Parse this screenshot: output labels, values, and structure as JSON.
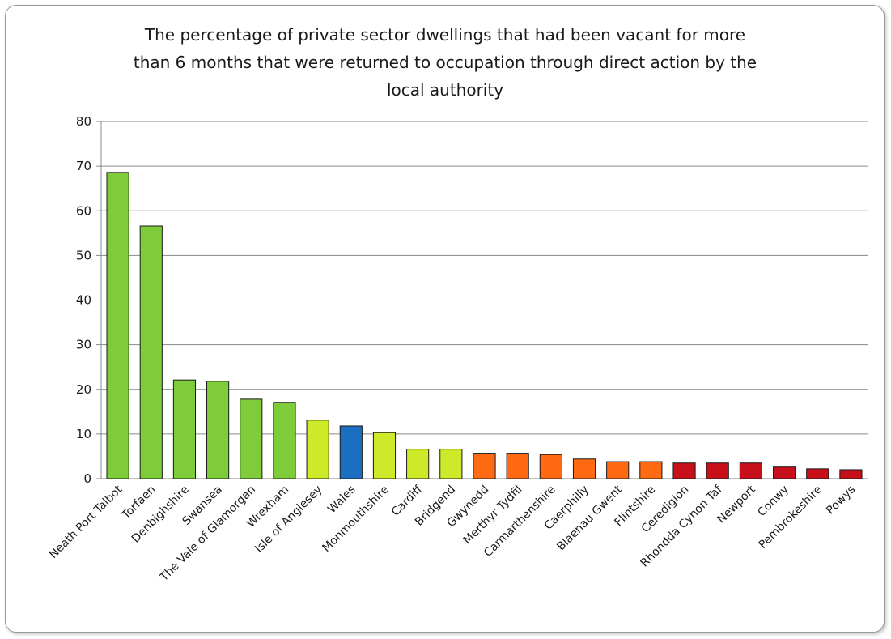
{
  "chart_data": {
    "type": "bar",
    "title_lines": [
      "The percentage of private sector dwellings that had been vacant for more",
      "than 6 months that were returned to occupation through direct action by the",
      "local authority"
    ],
    "xlabel": "",
    "ylabel": "",
    "ylim": [
      0,
      80
    ],
    "yticks": [
      0,
      10,
      20,
      30,
      40,
      50,
      60,
      70,
      80
    ],
    "grid": true,
    "categories": [
      "Neath Port Talbot",
      "Torfaen",
      "Denbighshire",
      "Swansea",
      "The Vale of Glamorgan",
      "Wrexham",
      "Isle of Anglesey",
      "Wales",
      "Monmouthshire",
      "Cardiff",
      "Bridgend",
      "Gwynedd",
      "Merthyr Tydfil",
      "Carmarthenshire",
      "Caerphilly",
      "Blaenau Gwent",
      "Flintshire",
      "Ceredigion",
      "Rhondda Cynon Taf",
      "Newport",
      "Conwy",
      "Pembrokeshire",
      "Powys"
    ],
    "values": [
      68.6,
      56.6,
      22.1,
      21.8,
      17.8,
      17.1,
      13.1,
      11.8,
      10.3,
      6.6,
      6.6,
      5.7,
      5.7,
      5.4,
      4.4,
      3.8,
      3.8,
      3.5,
      3.5,
      3.5,
      2.6,
      2.2,
      2.0
    ],
    "bar_colors": [
      "#7ecc3a",
      "#7ecc3a",
      "#7ecc3a",
      "#7ecc3a",
      "#7ecc3a",
      "#7ecc3a",
      "#cde92a",
      "#1a6fc0",
      "#cde92a",
      "#cde92a",
      "#cde92a",
      "#ff6a12",
      "#ff6a12",
      "#ff6a12",
      "#ff6a12",
      "#ff6a12",
      "#ff6a12",
      "#c8101a",
      "#c8101a",
      "#c8101a",
      "#c8101a",
      "#c8101a",
      "#c8101a"
    ]
  }
}
